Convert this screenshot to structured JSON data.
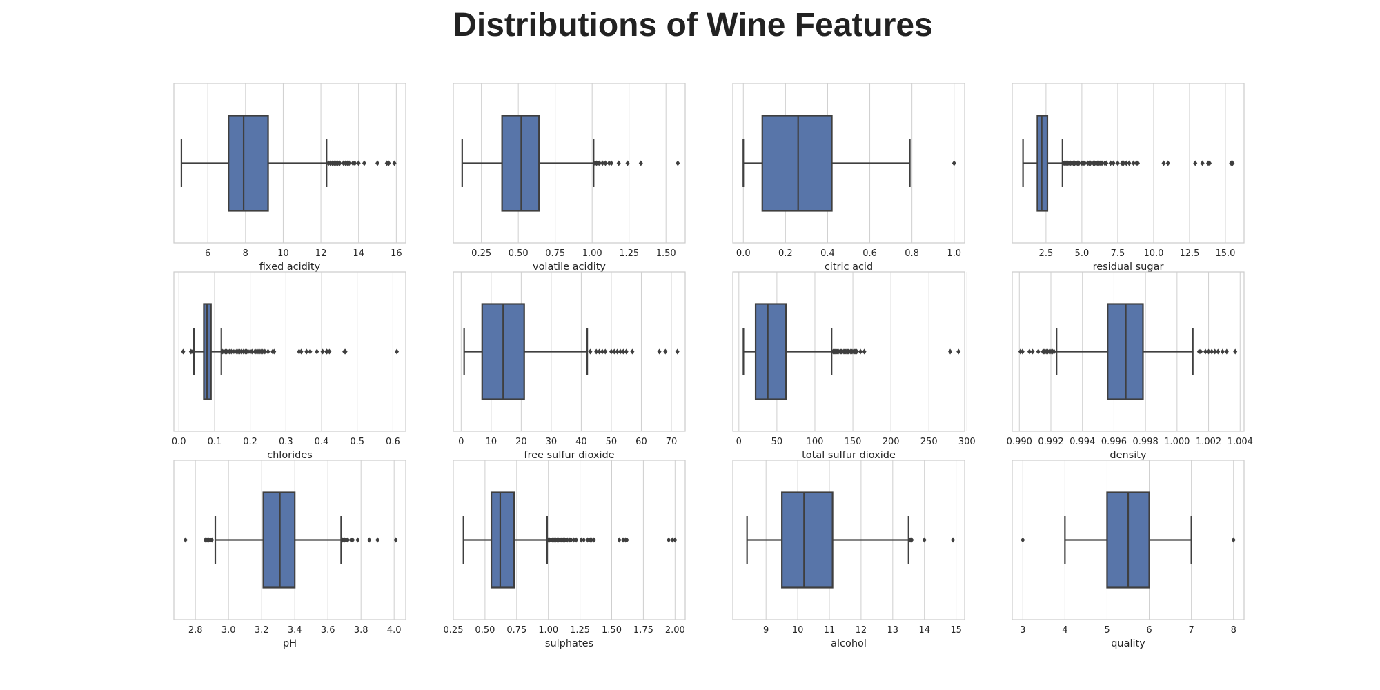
{
  "figure": {
    "title": "Distributions of Wine Features"
  },
  "colors": {
    "box_fill": "#5875A9",
    "line": "#3F3F3F",
    "grid": "#CFCFCF",
    "frame": "#CCCCCC",
    "background": "#FFFFFF"
  },
  "chart_data": [
    {
      "type": "box",
      "xlabel": "fixed acidity",
      "xlim": [
        4.2,
        16.5
      ],
      "grid": true,
      "ticks": [
        6,
        8,
        10,
        12,
        14,
        16
      ],
      "tick_labels": [
        "6",
        "8",
        "10",
        "12",
        "14",
        "16"
      ],
      "stats": {
        "whisker_low": 4.6,
        "q1": 7.1,
        "median": 7.9,
        "q3": 9.2,
        "whisker_high": 12.3
      },
      "outliers": [
        12.4,
        12.5,
        12.6,
        12.7,
        12.8,
        12.9,
        13.0,
        13.2,
        13.3,
        13.4,
        13.5,
        13.7,
        13.8,
        14.0,
        14.3,
        15.0,
        15.5,
        15.6,
        15.9
      ]
    },
    {
      "type": "box",
      "xlabel": "volatile acidity",
      "xlim": [
        0.06,
        1.63
      ],
      "grid": true,
      "ticks": [
        0.25,
        0.5,
        0.75,
        1.0,
        1.25,
        1.5
      ],
      "tick_labels": [
        "0.25",
        "0.50",
        "0.75",
        "1.00",
        "1.25",
        "1.50"
      ],
      "stats": {
        "whisker_low": 0.12,
        "q1": 0.39,
        "median": 0.52,
        "q3": 0.64,
        "whisker_high": 1.01
      },
      "outliers": [
        1.02,
        1.03,
        1.04,
        1.05,
        1.07,
        1.09,
        1.115,
        1.13,
        1.18,
        1.24,
        1.33,
        1.58
      ]
    },
    {
      "type": "box",
      "xlabel": "citric acid",
      "xlim": [
        -0.05,
        1.05
      ],
      "grid": true,
      "ticks": [
        0.0,
        0.2,
        0.4,
        0.6,
        0.8,
        1.0
      ],
      "tick_labels": [
        "0.0",
        "0.2",
        "0.4",
        "0.6",
        "0.8",
        "1.0"
      ],
      "stats": {
        "whisker_low": 0.0,
        "q1": 0.09,
        "median": 0.26,
        "q3": 0.42,
        "whisker_high": 0.79
      },
      "outliers": [
        1.0
      ]
    },
    {
      "type": "box",
      "xlabel": "residual sugar",
      "xlim": [
        0.15,
        16.3
      ],
      "grid": true,
      "ticks": [
        2.5,
        5.0,
        7.5,
        10.0,
        12.5,
        15.0
      ],
      "tick_labels": [
        "2.5",
        "5.0",
        "7.5",
        "10.0",
        "12.5",
        "15.0"
      ],
      "stats": {
        "whisker_low": 0.9,
        "q1": 1.9,
        "median": 2.2,
        "q3": 2.6,
        "whisker_high": 3.65
      },
      "outliers": [
        3.7,
        3.8,
        3.9,
        4.0,
        4.1,
        4.2,
        4.3,
        4.4,
        4.5,
        4.6,
        4.7,
        4.8,
        5.0,
        5.1,
        5.2,
        5.4,
        5.5,
        5.6,
        5.8,
        5.9,
        6.0,
        6.1,
        6.2,
        6.3,
        6.4,
        6.6,
        6.7,
        7.0,
        7.2,
        7.5,
        7.8,
        7.9,
        8.1,
        8.3,
        8.6,
        8.8,
        8.9,
        10.7,
        11.0,
        12.9,
        13.4,
        13.8,
        13.9,
        15.4,
        15.5
      ]
    },
    {
      "type": "box",
      "xlabel": "chlorides",
      "xlim": [
        -0.014,
        0.636
      ],
      "grid": true,
      "ticks": [
        0.0,
        0.1,
        0.2,
        0.3,
        0.4,
        0.5,
        0.6
      ],
      "tick_labels": [
        "0.0",
        "0.1",
        "0.2",
        "0.3",
        "0.4",
        "0.5",
        "0.6"
      ],
      "stats": {
        "whisker_low": 0.042,
        "q1": 0.07,
        "median": 0.079,
        "q3": 0.09,
        "whisker_high": 0.119
      },
      "outliers": [
        0.012,
        0.034,
        0.039,
        0.122,
        0.126,
        0.13,
        0.134,
        0.138,
        0.142,
        0.147,
        0.152,
        0.157,
        0.162,
        0.166,
        0.171,
        0.176,
        0.181,
        0.186,
        0.19,
        0.194,
        0.2,
        0.205,
        0.213,
        0.216,
        0.222,
        0.226,
        0.23,
        0.235,
        0.241,
        0.25,
        0.263,
        0.267,
        0.337,
        0.343,
        0.358,
        0.368,
        0.387,
        0.403,
        0.414,
        0.415,
        0.422,
        0.464,
        0.467,
        0.611
      ]
    },
    {
      "type": "box",
      "xlabel": "free sulfur dioxide",
      "xlim": [
        -2.6,
        74.6
      ],
      "grid": true,
      "ticks": [
        0,
        10,
        20,
        30,
        40,
        50,
        60,
        70
      ],
      "tick_labels": [
        "0",
        "10",
        "20",
        "30",
        "40",
        "50",
        "60",
        "70"
      ],
      "stats": {
        "whisker_low": 1,
        "q1": 7,
        "median": 14,
        "q3": 21,
        "whisker_high": 42
      },
      "outliers": [
        43,
        45,
        46,
        47,
        48,
        50,
        51,
        52,
        53,
        54,
        55,
        57,
        66,
        68,
        72
      ]
    },
    {
      "type": "box",
      "xlabel": "total sulfur dioxide",
      "xlim": [
        -8,
        297
      ],
      "grid": true,
      "ticks": [
        0,
        50,
        100,
        150,
        200,
        250,
        300
      ],
      "tick_labels": [
        "0",
        "50",
        "100",
        "150",
        "200",
        "250",
        "300"
      ],
      "stats": {
        "whisker_low": 6,
        "q1": 22,
        "median": 38,
        "q3": 62,
        "whisker_high": 122
      },
      "outliers": [
        124,
        125,
        126,
        127,
        128,
        129,
        130,
        131,
        133,
        134,
        135,
        136,
        138,
        139,
        140,
        141,
        143,
        144,
        145,
        147,
        148,
        149,
        151,
        152,
        153,
        155,
        160,
        165,
        278,
        289
      ]
    },
    {
      "type": "box",
      "xlabel": "density",
      "xlim": [
        0.98955,
        1.00425
      ],
      "grid": true,
      "ticks": [
        0.99,
        0.992,
        0.994,
        0.996,
        0.998,
        1.0,
        1.002,
        1.004
      ],
      "tick_labels": [
        "0.990",
        "0.992",
        "0.994",
        "0.996",
        "0.998",
        "1.000",
        "1.002",
        "1.004"
      ],
      "stats": {
        "whisker_low": 0.99236,
        "q1": 0.9956,
        "median": 0.99675,
        "q3": 0.99784,
        "whisker_high": 1.001
      },
      "outliers": [
        0.99007,
        0.9902,
        0.99064,
        0.99084,
        0.9912,
        0.9915,
        0.99154,
        0.9916,
        0.9917,
        0.9918,
        0.99191,
        0.992,
        0.9921,
        0.9922,
        1.0014,
        1.0015,
        1.0018,
        1.002,
        1.0022,
        1.0024,
        1.0026,
        1.00289,
        1.00315,
        1.00369
      ]
    },
    {
      "type": "box",
      "xlabel": "pH",
      "xlim": [
        2.67,
        4.07
      ],
      "grid": true,
      "ticks": [
        2.8,
        3.0,
        3.2,
        3.4,
        3.6,
        3.8,
        4.0
      ],
      "tick_labels": [
        "2.8",
        "3.0",
        "3.2",
        "3.4",
        "3.6",
        "3.8",
        "4.0"
      ],
      "stats": {
        "whisker_low": 2.92,
        "q1": 3.21,
        "median": 3.31,
        "q3": 3.4,
        "whisker_high": 3.68
      },
      "outliers": [
        2.74,
        2.86,
        2.87,
        2.88,
        2.89,
        2.9,
        3.69,
        3.7,
        3.71,
        3.72,
        3.74,
        3.75,
        3.78,
        3.85,
        3.9,
        4.01
      ]
    },
    {
      "type": "box",
      "xlabel": "sulphates",
      "xlim": [
        0.25,
        2.08
      ],
      "grid": true,
      "ticks": [
        0.25,
        0.5,
        0.75,
        1.0,
        1.25,
        1.5,
        1.75,
        2.0
      ],
      "tick_labels": [
        "0.25",
        "0.50",
        "0.75",
        "1.00",
        "1.25",
        "1.50",
        "1.75",
        "2.00"
      ],
      "stats": {
        "whisker_low": 0.33,
        "q1": 0.55,
        "median": 0.62,
        "q3": 0.73,
        "whisker_high": 0.99
      },
      "outliers": [
        1.0,
        1.01,
        1.02,
        1.03,
        1.04,
        1.05,
        1.06,
        1.07,
        1.08,
        1.09,
        1.1,
        1.11,
        1.12,
        1.13,
        1.14,
        1.15,
        1.17,
        1.18,
        1.2,
        1.22,
        1.26,
        1.28,
        1.31,
        1.33,
        1.34,
        1.36,
        1.56,
        1.59,
        1.61,
        1.62,
        1.95,
        1.98,
        2.0
      ]
    },
    {
      "type": "box",
      "xlabel": "alcohol",
      "xlim": [
        7.95,
        15.27
      ],
      "grid": true,
      "ticks": [
        9,
        10,
        11,
        12,
        13,
        14,
        15
      ],
      "tick_labels": [
        "9",
        "10",
        "11",
        "12",
        "13",
        "14",
        "15"
      ],
      "stats": {
        "whisker_low": 8.4,
        "q1": 9.5,
        "median": 10.2,
        "q3": 11.1,
        "whisker_high": 13.5
      },
      "outliers": [
        13.55,
        13.6,
        14.0,
        14.9
      ]
    },
    {
      "type": "box",
      "xlabel": "quality",
      "xlim": [
        2.75,
        8.25
      ],
      "grid": true,
      "ticks": [
        3,
        4,
        5,
        6,
        7,
        8
      ],
      "tick_labels": [
        "3",
        "4",
        "5",
        "6",
        "7",
        "8"
      ],
      "stats": {
        "whisker_low": 4,
        "q1": 5,
        "median": 5.5,
        "q3": 6,
        "whisker_high": 7
      },
      "outliers": [
        3,
        8
      ]
    }
  ]
}
